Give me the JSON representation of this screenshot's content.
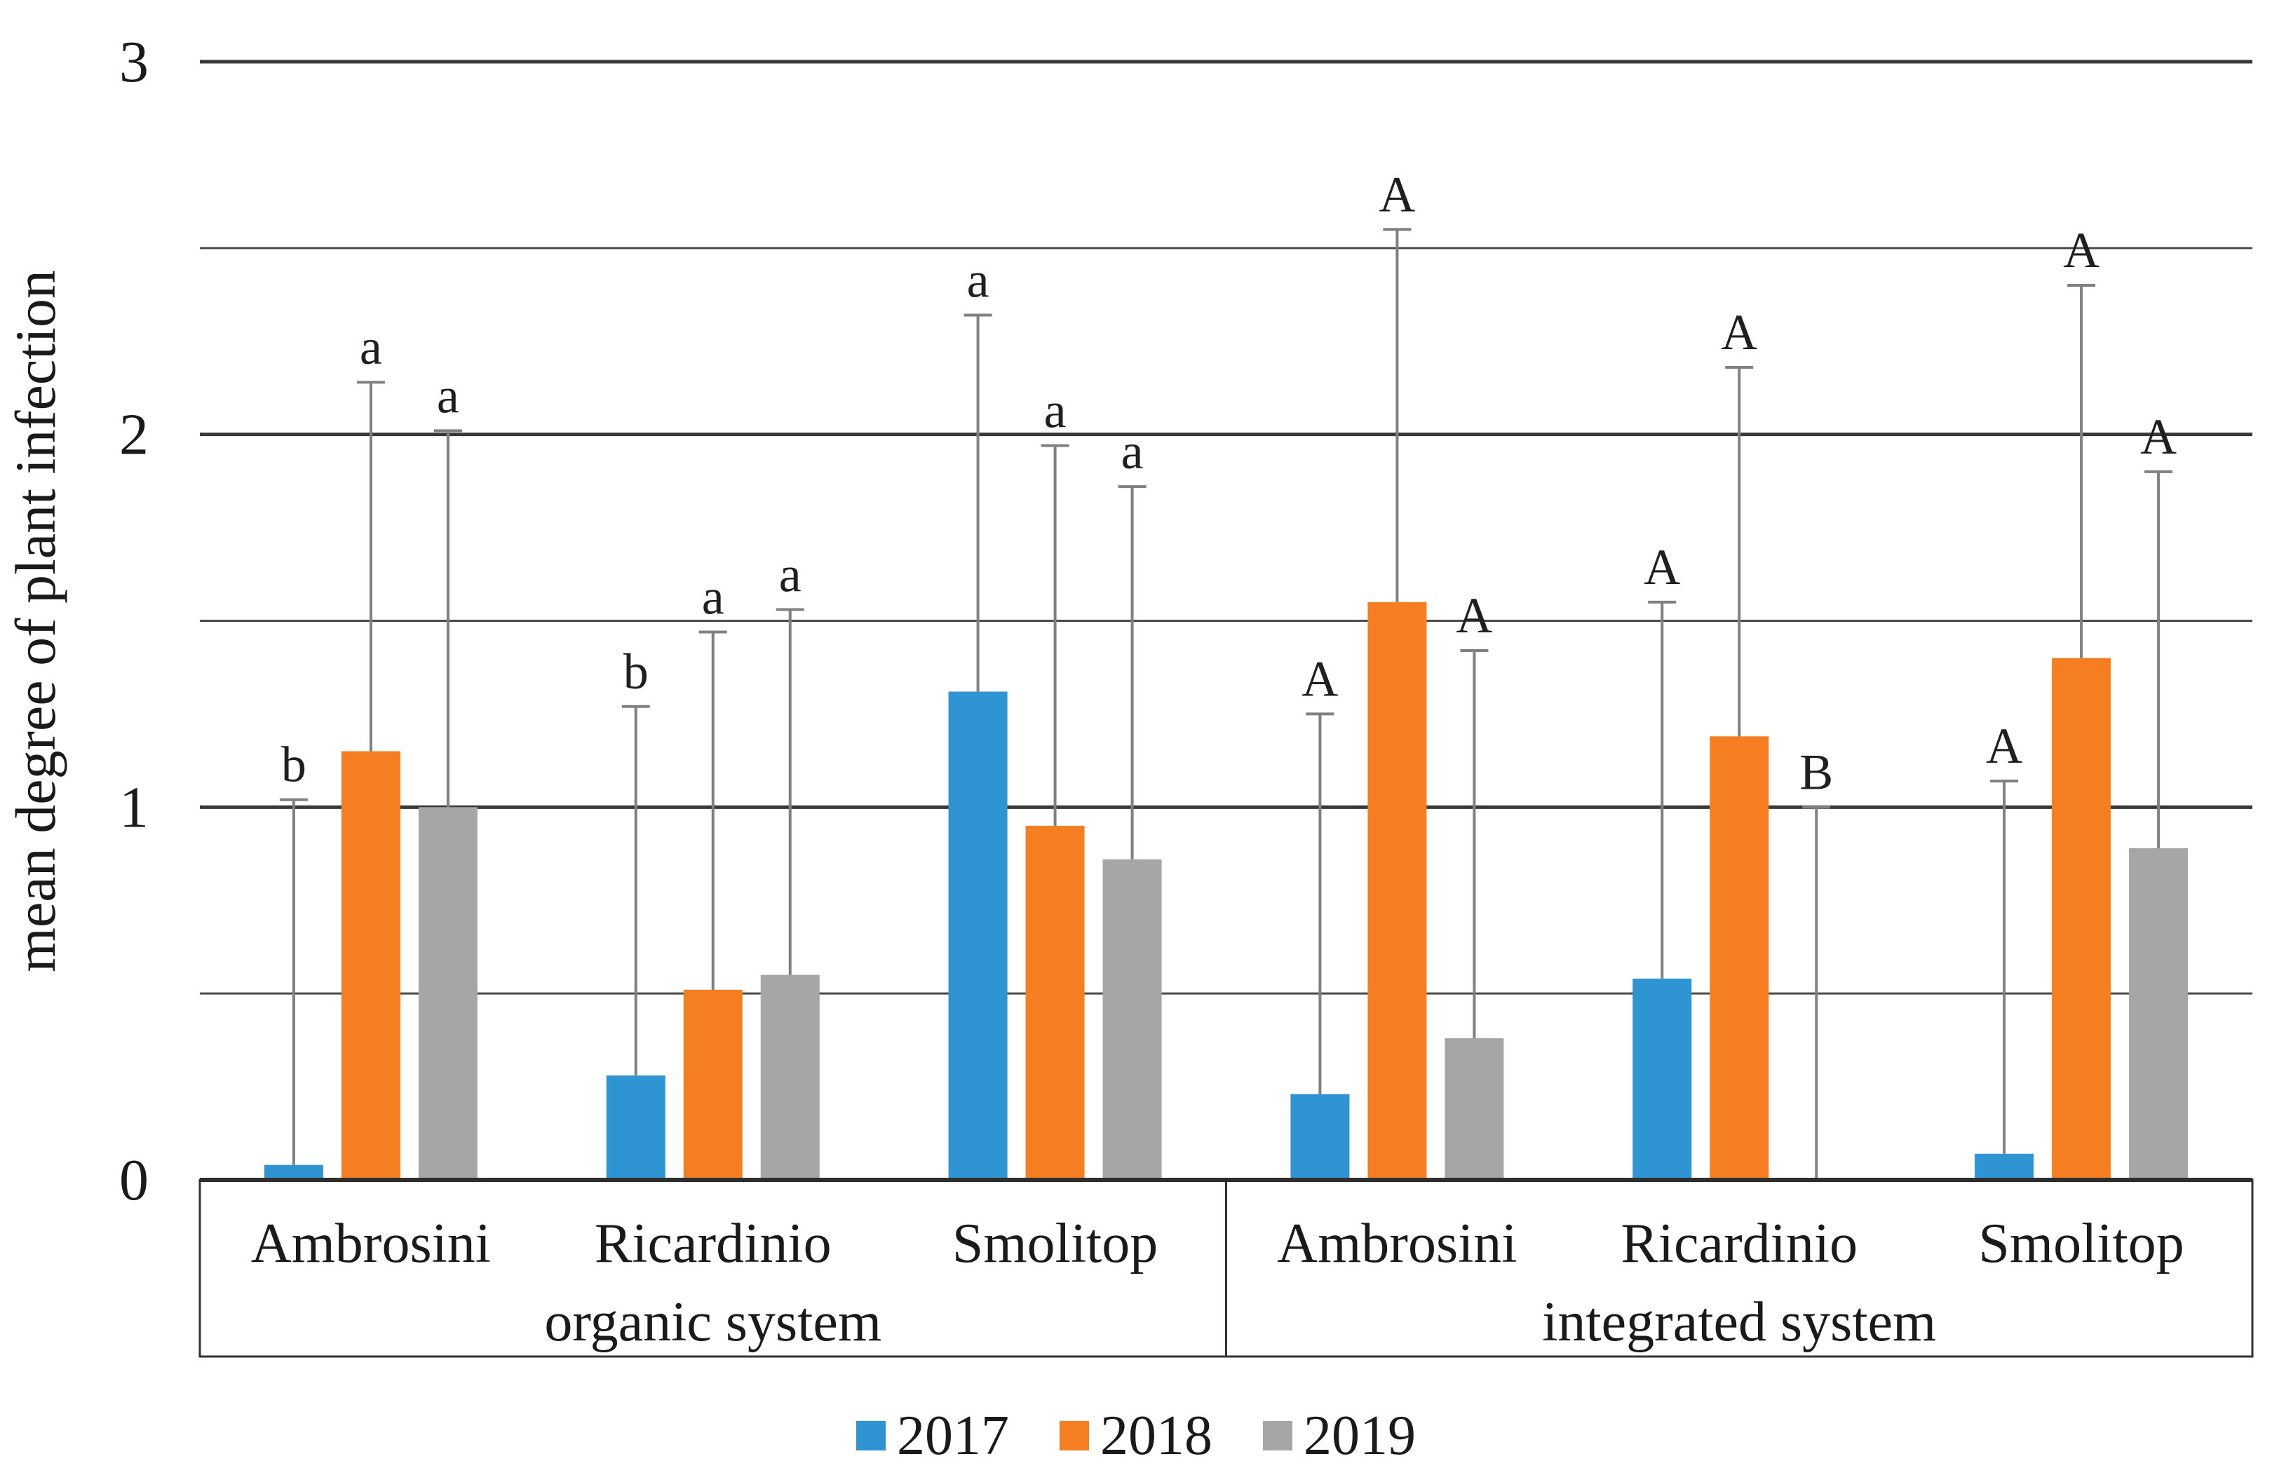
{
  "chart_data": {
    "type": "bar",
    "title": "",
    "ylabel": "mean degree of plant infection",
    "xlabel": "",
    "ylim": [
      0,
      3
    ],
    "ytick_values": [
      0,
      1,
      2,
      3
    ],
    "ytick_labels": [
      "0",
      "1",
      "2",
      "3"
    ],
    "gridline_step": 0.5,
    "grid": "horizontal",
    "legend_position": "bottom-center",
    "error_bar_color": "#808080",
    "series": [
      {
        "name": "2017",
        "color": "#2E95D2"
      },
      {
        "name": "2018",
        "color": "#F57E22"
      },
      {
        "name": "2019",
        "color": "#A6A6A6"
      }
    ],
    "groups": [
      {
        "label": "organic system",
        "clusters": [
          {
            "category": "Ambrosini",
            "bars": [
              {
                "series": "2017",
                "value": 0.04,
                "error_top": 1.02,
                "letter": "b"
              },
              {
                "series": "2018",
                "value": 1.15,
                "error_top": 2.14,
                "letter": "a"
              },
              {
                "series": "2019",
                "value": 1.0,
                "error_top": 2.01,
                "letter": "a"
              }
            ]
          },
          {
            "category": "Ricardinio",
            "bars": [
              {
                "series": "2017",
                "value": 0.28,
                "error_top": 1.27,
                "letter": "b"
              },
              {
                "series": "2018",
                "value": 0.51,
                "error_top": 1.47,
                "letter": "a"
              },
              {
                "series": "2019",
                "value": 0.55,
                "error_top": 1.53,
                "letter": "a"
              }
            ]
          },
          {
            "category": "Smolitop",
            "bars": [
              {
                "series": "2017",
                "value": 1.31,
                "error_top": 2.32,
                "letter": "a"
              },
              {
                "series": "2018",
                "value": 0.95,
                "error_top": 1.97,
                "letter": "a"
              },
              {
                "series": "2019",
                "value": 0.86,
                "error_top": 1.86,
                "letter": "a"
              }
            ]
          }
        ]
      },
      {
        "label": "integrated system",
        "clusters": [
          {
            "category": "Ambrosini",
            "bars": [
              {
                "series": "2017",
                "value": 0.23,
                "error_top": 1.25,
                "letter": "A"
              },
              {
                "series": "2018",
                "value": 1.55,
                "error_top": 2.55,
                "letter": "A"
              },
              {
                "series": "2019",
                "value": 0.38,
                "error_top": 1.42,
                "letter": "A"
              }
            ]
          },
          {
            "category": "Ricardinio",
            "bars": [
              {
                "series": "2017",
                "value": 0.54,
                "error_top": 1.55,
                "letter": "A"
              },
              {
                "series": "2018",
                "value": 1.19,
                "error_top": 2.18,
                "letter": "A"
              },
              {
                "series": "2019",
                "value": 0.0,
                "error_top": 1.0,
                "letter": "B"
              }
            ]
          },
          {
            "category": "Smolitop",
            "bars": [
              {
                "series": "2017",
                "value": 0.07,
                "error_top": 1.07,
                "letter": "A"
              },
              {
                "series": "2018",
                "value": 1.4,
                "error_top": 2.4,
                "letter": "A"
              },
              {
                "series": "2019",
                "value": 0.89,
                "error_top": 1.9,
                "letter": "A"
              }
            ]
          }
        ]
      }
    ]
  }
}
